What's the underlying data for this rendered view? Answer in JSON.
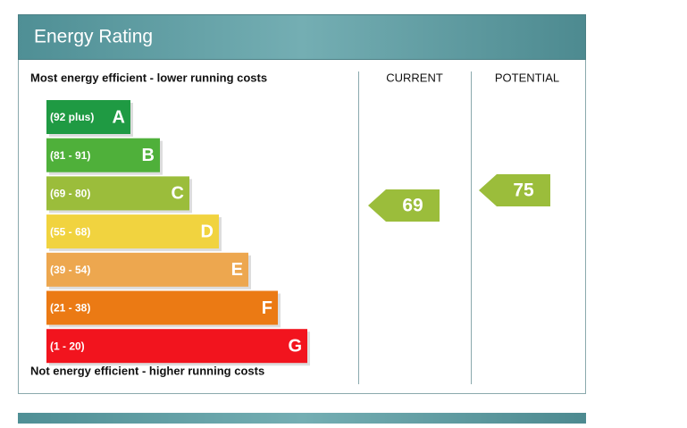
{
  "header": {
    "title": "Energy Rating"
  },
  "top_note": "Most energy efficient - lower running costs",
  "bottom_note": "Not energy efficient - higher running costs",
  "columns": {
    "current": "CURRENT",
    "potential": "POTENTIAL"
  },
  "bands": [
    {
      "range": "(92 plus)",
      "letter": "A",
      "color": "#1f9a43"
    },
    {
      "range": "(81 - 91)",
      "letter": "B",
      "color": "#4fb03a"
    },
    {
      "range": "(69 - 80)",
      "letter": "C",
      "color": "#9bbd3b"
    },
    {
      "range": "(55 - 68)",
      "letter": "D",
      "color": "#f1d33f"
    },
    {
      "range": "(39 - 54)",
      "letter": "E",
      "color": "#eda74f"
    },
    {
      "range": "(21 - 38)",
      "letter": "F",
      "color": "#eb7a14"
    },
    {
      "range": "(1 - 20)",
      "letter": "G",
      "color": "#f2141e"
    }
  ],
  "current": {
    "value": 69,
    "color": "#9bbd3b"
  },
  "potential": {
    "value": 75,
    "color": "#9bbd3b"
  }
}
